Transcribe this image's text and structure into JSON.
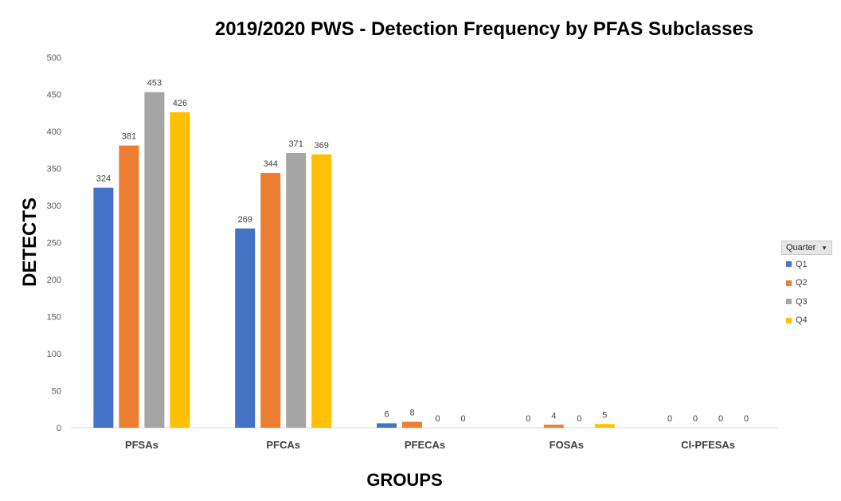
{
  "chart_data": {
    "type": "bar",
    "title": "2019/2020 PWS - Detection Frequency by PFAS Subclasses",
    "xlabel": "GROUPS",
    "ylabel": "DETECTS",
    "ylim": [
      0,
      500
    ],
    "yticks": [
      0,
      50,
      100,
      150,
      200,
      250,
      300,
      350,
      400,
      450,
      500
    ],
    "grid": false,
    "legend_title": "Quarter",
    "legend_placement": "right",
    "categories": [
      "PFSAs",
      "PFCAs",
      "PFECAs",
      "FOSAs",
      "Cl-PFESAs"
    ],
    "series": [
      {
        "name": "Q1",
        "color": "#4472C4",
        "values": [
          324,
          269,
          6,
          0,
          0
        ]
      },
      {
        "name": "Q2",
        "color": "#ED7D31",
        "values": [
          381,
          344,
          8,
          4,
          0
        ]
      },
      {
        "name": "Q3",
        "color": "#A5A5A5",
        "values": [
          453,
          371,
          0,
          0,
          0
        ]
      },
      {
        "name": "Q4",
        "color": "#FFC000",
        "values": [
          426,
          369,
          0,
          5,
          0
        ]
      }
    ]
  }
}
